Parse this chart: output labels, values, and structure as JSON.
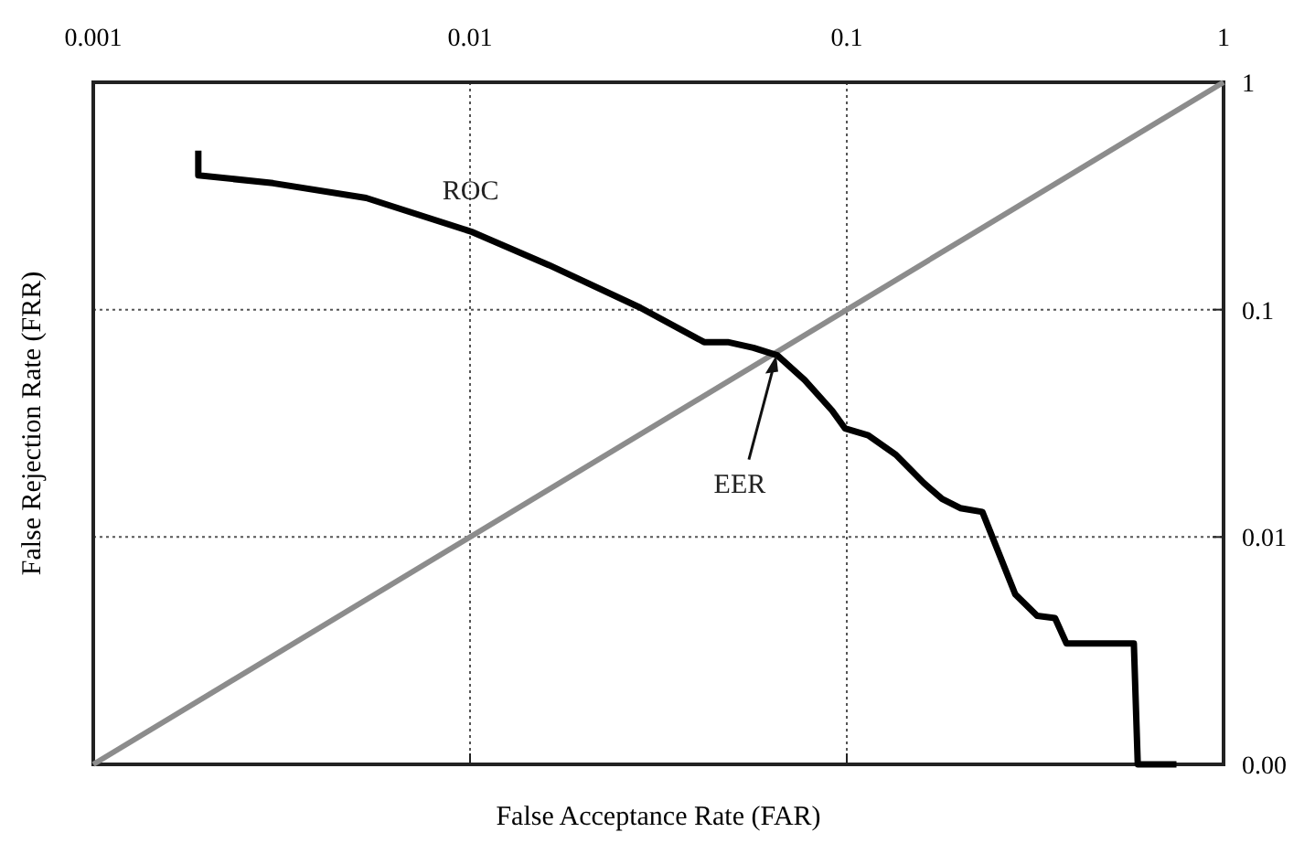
{
  "chart_data": {
    "type": "line",
    "xlabel": "False Acceptance Rate (FAR)",
    "ylabel": "False Rejection Rate (FRR)",
    "xlim": [
      0.001,
      1
    ],
    "xticks": [
      0.001,
      0.01,
      0.1,
      1
    ],
    "ylim": [
      0.001,
      1
    ],
    "yticks": [
      {
        "value": 0.001,
        "label": "0.00"
      },
      0.01,
      0.1,
      1
    ],
    "log": "xy",
    "grid": true,
    "marker": "none",
    "line_style": "solid",
    "series": [
      {
        "name": "ROC",
        "color": "#000000",
        "x": [
          0.0019,
          0.0019,
          0.003,
          0.0053,
          0.0101,
          0.0162,
          0.0283,
          0.0418,
          0.0483,
          0.0565,
          0.0654,
          0.0773,
          0.0914,
          0.099,
          0.114,
          0.135,
          0.16,
          0.179,
          0.2,
          0.229,
          0.28,
          0.32,
          0.357,
          0.383,
          0.578,
          0.592,
          0.75
        ],
        "values": [
          0.5,
          0.39,
          0.36,
          0.31,
          0.22,
          0.157,
          0.102,
          0.072,
          0.072,
          0.068,
          0.063,
          0.049,
          0.036,
          0.03,
          0.028,
          0.023,
          0.0173,
          0.0147,
          0.0134,
          0.0129,
          0.0056,
          0.0045,
          0.0044,
          0.0034,
          0.0034,
          0.001,
          0.001
        ]
      },
      {
        "color": "#8c8c8c",
        "x": [
          0.001,
          1
        ],
        "values": [
          0.001,
          1
        ]
      }
    ],
    "annotations": [
      {
        "text": "EER",
        "x": 0.065,
        "y": 0.063
      }
    ]
  }
}
